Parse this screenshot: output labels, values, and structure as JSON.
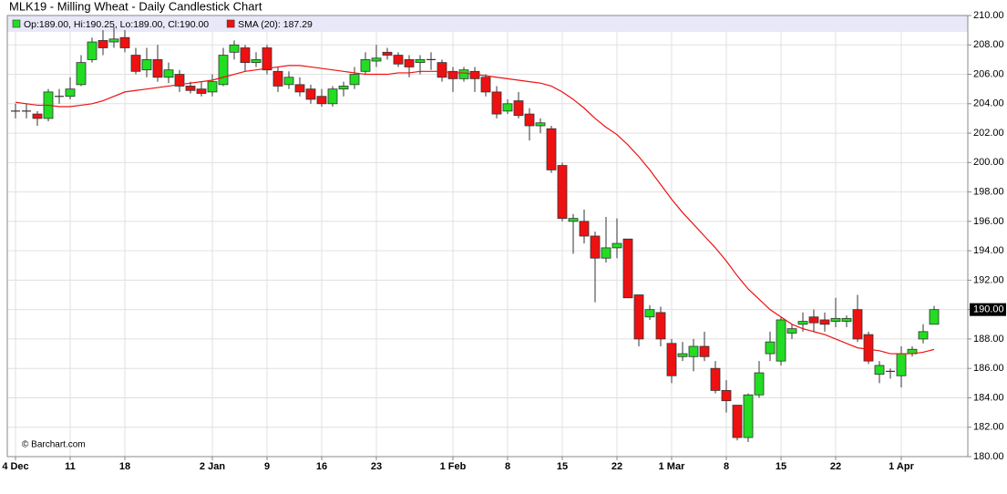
{
  "chart_data": {
    "type": "candlestick",
    "title": "MLK19 - Milling Wheat - Daily Candlestick Chart",
    "annotation": "© Barchart.com",
    "legend": [
      {
        "label": "Op:189.00, Hi:190.25, Lo:189.00, Cl:190.00",
        "color": "#22dd22"
      },
      {
        "label": "SMA (20): 187.29",
        "color": "#ee1111"
      }
    ],
    "up_color": "#22dd22",
    "down_color": "#ee1111",
    "sma_color": "#ee1111",
    "grid": true,
    "ylim": [
      180,
      210
    ],
    "yticks": [
      {
        "value": 180,
        "label": "180.00"
      },
      {
        "value": 182,
        "label": "182.00"
      },
      {
        "value": 184,
        "label": "184.00"
      },
      {
        "value": 186,
        "label": "186.00"
      },
      {
        "value": 188,
        "label": "188.00"
      },
      {
        "value": 190,
        "label": "190.00"
      },
      {
        "value": 192,
        "label": "192.00"
      },
      {
        "value": 194,
        "label": "194.00"
      },
      {
        "value": 196,
        "label": "196.00"
      },
      {
        "value": 198,
        "label": "198.00"
      },
      {
        "value": 200,
        "label": "200.00"
      },
      {
        "value": 202,
        "label": "202.00"
      },
      {
        "value": 204,
        "label": "204.00"
      },
      {
        "value": 206,
        "label": "206.00"
      },
      {
        "value": 208,
        "label": "208.00"
      },
      {
        "value": 210,
        "label": "210.00"
      }
    ],
    "last_price": {
      "value": 190,
      "label": "190.00"
    },
    "categories": [
      "4 Dec",
      null,
      null,
      null,
      null,
      "11",
      null,
      null,
      null,
      null,
      "18",
      null,
      null,
      null,
      null,
      null,
      null,
      null,
      "2 Jan",
      null,
      null,
      null,
      null,
      "9",
      null,
      null,
      null,
      null,
      "16",
      null,
      null,
      null,
      null,
      "23",
      null,
      null,
      null,
      null,
      null,
      null,
      "1 Feb",
      null,
      null,
      null,
      null,
      "8",
      null,
      null,
      null,
      null,
      "15",
      null,
      null,
      null,
      null,
      "22",
      null,
      null,
      null,
      null,
      "1 Mar",
      null,
      null,
      null,
      null,
      "8",
      null,
      null,
      null,
      null,
      "15",
      null,
      null,
      null,
      null,
      "22",
      null,
      null,
      null,
      null,
      null,
      "1 Apr",
      null,
      null,
      null
    ],
    "open": [
      203.5,
      203.5,
      203.3,
      203.0,
      204.5,
      204.5,
      205.3,
      207.0,
      208.3,
      208.2,
      208.5,
      207.3,
      206.3,
      207.0,
      205.8,
      206.0,
      205.2,
      205.0,
      204.8,
      205.3,
      207.5,
      207.8,
      206.8,
      207.8,
      206.2,
      205.3,
      205.3,
      205.0,
      204.5,
      204.0,
      205.0,
      205.3,
      206.2,
      206.9,
      207.5,
      207.3,
      207.0,
      206.8,
      207.0,
      206.8,
      206.2,
      205.7,
      206.2,
      205.8,
      204.8,
      203.5,
      204.2,
      203.3,
      202.5,
      202.3,
      199.8,
      196.0,
      196.0,
      195.0,
      193.5,
      194.2,
      194.8,
      191.0,
      189.5,
      189.8,
      187.7,
      186.8,
      186.8,
      187.5,
      186.0,
      184.5,
      183.5,
      181.3,
      184.2,
      187.0,
      186.5,
      188.4,
      189.0,
      189.5,
      189.3,
      189.2,
      189.2,
      190.0,
      188.3,
      185.6,
      185.8,
      185.5,
      187.0,
      188.0,
      189.0
    ],
    "high": [
      204,
      204,
      203.5,
      205,
      205,
      205.8,
      207.3,
      208.5,
      209,
      209.2,
      209,
      207.8,
      207.8,
      208,
      206.8,
      206.3,
      205.5,
      205.5,
      206,
      207.8,
      208.3,
      208,
      207.5,
      208,
      206.5,
      206.2,
      205.8,
      205.3,
      205,
      205.2,
      205.5,
      206.5,
      207.5,
      208,
      207.8,
      207.5,
      207.3,
      207.3,
      207.5,
      207,
      206.5,
      206.5,
      206.5,
      206,
      205.2,
      204.3,
      204.8,
      203.7,
      203,
      202.5,
      200,
      196.5,
      196.8,
      195.3,
      196.3,
      196.2,
      194.8,
      191,
      190.3,
      190.2,
      188,
      187.8,
      188,
      188.5,
      186.5,
      185.2,
      183.5,
      184.3,
      186.5,
      188.5,
      189.5,
      189,
      189.8,
      190,
      189.8,
      190.8,
      189.6,
      191,
      188.5,
      186.5,
      186,
      187.5,
      187.5,
      189,
      190.25
    ],
    "low": [
      203,
      203,
      202.5,
      202.8,
      204,
      204.3,
      205.2,
      206.8,
      207.3,
      207.8,
      207.5,
      206,
      205.8,
      205.5,
      205.4,
      204.8,
      204.7,
      204.5,
      204.5,
      205.2,
      207,
      206.2,
      206.5,
      206,
      204.8,
      205,
      204.5,
      204,
      203.8,
      203.8,
      204.5,
      205,
      206,
      206.5,
      207,
      206.5,
      205.8,
      206,
      206.3,
      205.5,
      204.8,
      205.5,
      204.8,
      204.5,
      203,
      203.3,
      203,
      201.5,
      202,
      199.3,
      196,
      193.8,
      194.5,
      190.5,
      193.2,
      193.5,
      190.8,
      187.5,
      189.3,
      187.5,
      185,
      186.5,
      185.8,
      186.5,
      184.3,
      183,
      181.1,
      181,
      184,
      186.5,
      186.2,
      188,
      188.5,
      188.5,
      188.5,
      188.8,
      188.8,
      187.8,
      186.3,
      185,
      185.3,
      184.7,
      186.8,
      187.7,
      189
    ],
    "close": [
      203.5,
      203.5,
      203.0,
      204.8,
      204.5,
      205.0,
      206.8,
      208.2,
      207.8,
      208.4,
      207.8,
      206.2,
      207.0,
      205.8,
      206.3,
      205.2,
      204.9,
      204.7,
      205.5,
      207.3,
      208,
      206.8,
      207.0,
      206.3,
      205.2,
      205.8,
      204.8,
      204.3,
      204.0,
      205.0,
      205.2,
      206,
      207,
      207.1,
      207.3,
      206.7,
      206.5,
      207.0,
      207.0,
      205.8,
      205.7,
      206.3,
      205.7,
      204.8,
      203.3,
      204.0,
      203.2,
      202.5,
      202.7,
      199.5,
      196.2,
      196.2,
      195.0,
      193.5,
      194.2,
      194.5,
      190.8,
      188.0,
      190.0,
      188.0,
      185.5,
      187.0,
      187.5,
      186.8,
      184.5,
      183.8,
      181.3,
      184.2,
      185.7,
      187.8,
      189.3,
      188.7,
      189.2,
      189.1,
      189.0,
      189.4,
      189.4,
      188.0,
      186.5,
      186.2,
      185.8,
      187.0,
      187.3,
      188.5,
      190.0
    ],
    "sma": [
      204.1,
      204.0,
      203.9,
      203.9,
      203.8,
      203.8,
      203.9,
      204.0,
      204.2,
      204.5,
      204.8,
      204.9,
      205.0,
      205.1,
      205.2,
      205.3,
      205.4,
      205.5,
      205.6,
      205.8,
      206.0,
      206.2,
      206.3,
      206.4,
      206.5,
      206.6,
      206.6,
      206.5,
      206.4,
      206.3,
      206.2,
      206.1,
      206.0,
      206.0,
      206.0,
      206.1,
      206.1,
      206.2,
      206.2,
      206.2,
      206.1,
      206.1,
      206.0,
      205.9,
      205.8,
      205.7,
      205.6,
      205.5,
      205.4,
      205.2,
      204.8,
      204.3,
      203.7,
      203.0,
      202.4,
      201.9,
      201.2,
      200.4,
      199.5,
      198.5,
      197.5,
      196.6,
      195.8,
      195.0,
      194.2,
      193.3,
      192.3,
      191.4,
      190.7,
      190.0,
      189.5,
      189.0,
      188.7,
      188.5,
      188.3,
      188.0,
      187.7,
      187.4,
      187.3,
      187.2,
      187.0,
      187.0,
      187.0,
      187.1,
      187.29
    ]
  }
}
